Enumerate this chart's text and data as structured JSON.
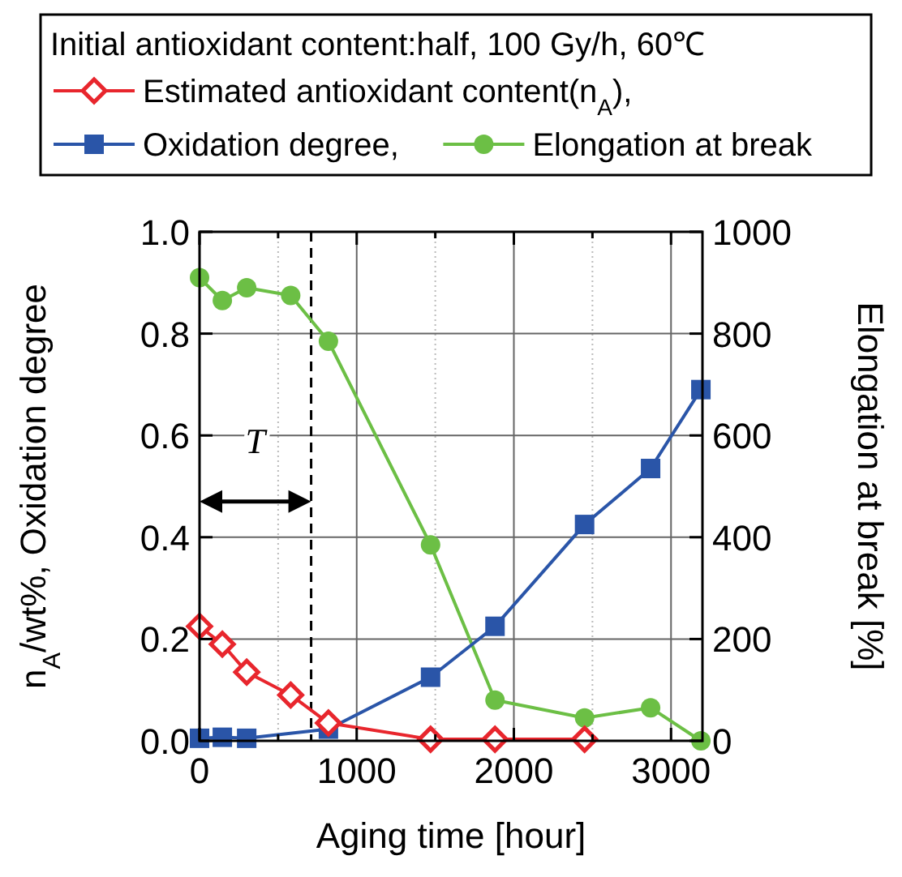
{
  "chart_data": {
    "type": "line",
    "legend_title": "Initial antioxidant content:half, 100 Gy/h, 60℃",
    "xlabel": "Aging time [hour]",
    "ylabel": "n$_{A}$/wt%, Oxidation degree",
    "y2label": "Elongation at break [%]",
    "series": [
      {
        "name": "Estimated antioxidant content(n$_{A}$),",
        "color": "#e8262d",
        "marker": "diamond",
        "x": [
          0,
          145,
          300,
          580,
          820,
          1470,
          1880,
          2450
        ],
        "values": [
          0.225,
          0.19,
          0.135,
          0.09,
          0.035,
          0.003,
          0.003,
          0.003
        ]
      },
      {
        "name": "Oxidation degree,",
        "color": "#2a55a8",
        "marker": "square",
        "x": [
          0,
          145,
          300,
          820,
          1470,
          1880,
          2450,
          2870,
          3190
        ],
        "values": [
          0.005,
          0.007,
          0.005,
          0.023,
          0.125,
          0.225,
          0.425,
          0.535,
          0.69
        ]
      },
      {
        "name": "Elongation at break",
        "color": "#6cbf45",
        "marker": "circle",
        "axis": "y2",
        "x": [
          0,
          145,
          300,
          580,
          820,
          1470,
          1880,
          2450,
          2870,
          3190
        ],
        "values": [
          910,
          865,
          890,
          875,
          785,
          385,
          80,
          45,
          65,
          0
        ]
      }
    ],
    "xlim": [
      0,
      3200
    ],
    "xticks": [
      0,
      {
        "value": 500,
        "label": null
      },
      1000,
      {
        "value": 1500,
        "label": null
      },
      2000,
      {
        "value": 2500,
        "label": null
      },
      3000
    ],
    "ylim": [
      0,
      1
    ],
    "yticks": [
      {
        "value": 0,
        "label": "0.0"
      },
      {
        "value": 0.2,
        "label": "0.2"
      },
      {
        "value": 0.4,
        "label": "0.4"
      },
      {
        "value": 0.6,
        "label": "0.6"
      },
      {
        "value": 0.8,
        "label": "0.8"
      },
      {
        "value": 1,
        "label": "1.0"
      }
    ],
    "y2lim": [
      0,
      1000
    ],
    "y2ticks": [
      0,
      200,
      400,
      600,
      800,
      1000
    ],
    "ref_lines": [
      {
        "axis": "x",
        "value": 710,
        "color": "#000000",
        "line_style": "dashed"
      }
    ],
    "annotations": [
      "T"
    ],
    "grid": true,
    "legend": "top"
  }
}
